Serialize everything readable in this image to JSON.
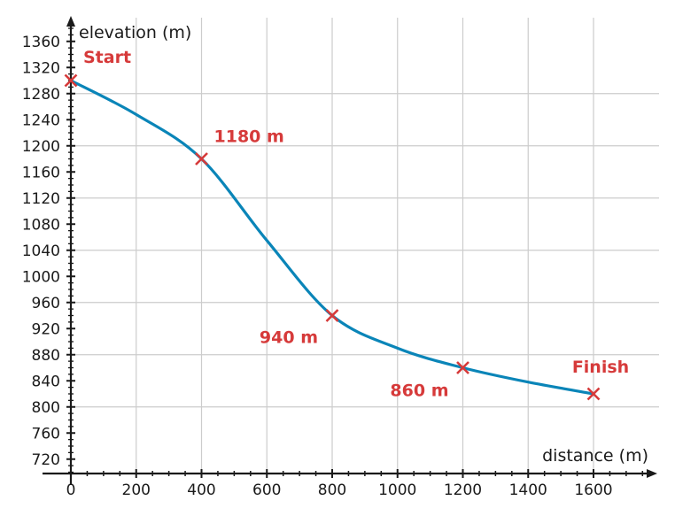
{
  "chart_data": {
    "type": "line",
    "title": "",
    "xlabel": "distance (m)",
    "ylabel": "elevation (m)",
    "x_ticks": [
      0,
      200,
      400,
      600,
      800,
      1000,
      1200,
      1400,
      1600
    ],
    "y_ticks": [
      720,
      760,
      800,
      840,
      880,
      920,
      960,
      1000,
      1040,
      1080,
      1120,
      1160,
      1200,
      1240,
      1280,
      1320,
      1360
    ],
    "grid": true,
    "line_color": "#0a85b8",
    "marker_color": "#d63a3a",
    "curve": [
      {
        "x": 0,
        "y": 1300
      },
      {
        "x": 200,
        "y": 1248
      },
      {
        "x": 400,
        "y": 1180
      },
      {
        "x": 600,
        "y": 1055
      },
      {
        "x": 800,
        "y": 940
      },
      {
        "x": 1000,
        "y": 890
      },
      {
        "x": 1200,
        "y": 860
      },
      {
        "x": 1400,
        "y": 838
      },
      {
        "x": 1600,
        "y": 820
      }
    ],
    "points": [
      {
        "x": 0,
        "y": 1300,
        "label": "Start"
      },
      {
        "x": 400,
        "y": 1180,
        "label": "1180 m"
      },
      {
        "x": 800,
        "y": 940,
        "label": "940 m"
      },
      {
        "x": 1200,
        "y": 860,
        "label": "860 m"
      },
      {
        "x": 1600,
        "y": 820,
        "label": "Finish"
      }
    ]
  }
}
